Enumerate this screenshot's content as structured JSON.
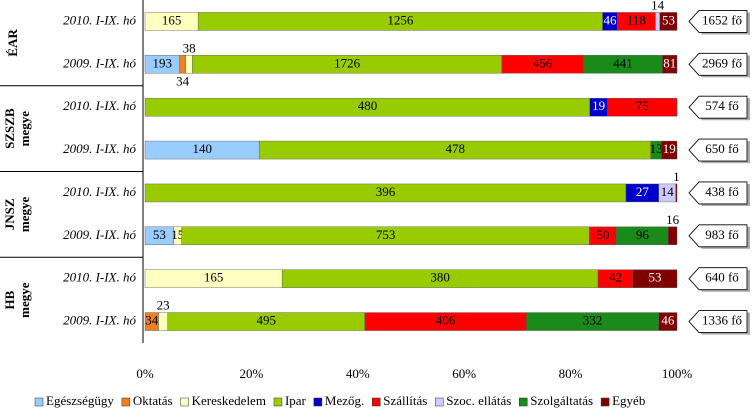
{
  "chart_data": {
    "type": "bar",
    "orientation": "horizontal",
    "stacked": "percent",
    "groups": [
      [
        "ÉAR"
      ],
      [
        "SZSZB",
        "megye"
      ],
      [
        "JNSZ",
        "megye"
      ],
      [
        "HB",
        "megye"
      ]
    ],
    "categories": [
      "2010. I-IX. hó",
      "2009. I-IX. hó",
      "2010. I-IX. hó",
      "2009. I-IX. hó",
      "2010. I-IX. hó",
      "2009. I-IX. hó",
      "2010. I-IX. hó",
      "2009. I-IX. hó"
    ],
    "series": [
      {
        "name": "Egészségügy",
        "color": "#99ccff",
        "values": [
          null,
          193,
          null,
          140,
          null,
          53,
          null,
          null
        ]
      },
      {
        "name": "Oktatás",
        "color": "#f07f1e",
        "values": [
          null,
          34,
          null,
          null,
          null,
          null,
          null,
          34
        ]
      },
      {
        "name": "Kereskedelem",
        "color": "#ffffc0",
        "values": [
          165,
          38,
          null,
          null,
          null,
          15,
          165,
          23
        ]
      },
      {
        "name": "Ipar",
        "color": "#99cc00",
        "values": [
          1256,
          1726,
          480,
          478,
          396,
          753,
          380,
          495
        ]
      },
      {
        "name": "Mezőg.",
        "color": "#0000cc",
        "values": [
          46,
          null,
          19,
          null,
          27,
          null,
          null,
          null
        ]
      },
      {
        "name": "Szállítás",
        "color": "#ff0000",
        "values": [
          118,
          456,
          75,
          null,
          null,
          50,
          42,
          406
        ]
      },
      {
        "name": "Szoc. ellátás",
        "color": "#ccccff",
        "values": [
          14,
          null,
          null,
          null,
          14,
          null,
          null,
          null
        ]
      },
      {
        "name": "Szolgáltatás",
        "color": "#1a8a1a",
        "values": [
          null,
          441,
          null,
          13,
          null,
          96,
          null,
          332
        ]
      },
      {
        "name": "Egyéb",
        "color": "#800000",
        "values": [
          53,
          81,
          null,
          19,
          1,
          16,
          53,
          46
        ]
      }
    ],
    "annotations": [
      "1652 fő",
      "2969 fő",
      "574 fő",
      "650 fő",
      "438 fő",
      "983 fő",
      "640 fő",
      "1336 fő"
    ],
    "xlim": [
      0,
      100
    ],
    "xticks": [
      {
        "value": 0,
        "label": "0%"
      },
      {
        "value": 20,
        "label": "20%"
      },
      {
        "value": 40,
        "label": "40%"
      },
      {
        "value": 60,
        "label": "60%"
      },
      {
        "value": 80,
        "label": "80%"
      },
      {
        "value": 100,
        "label": "100%"
      }
    ],
    "legend": "bottom"
  }
}
